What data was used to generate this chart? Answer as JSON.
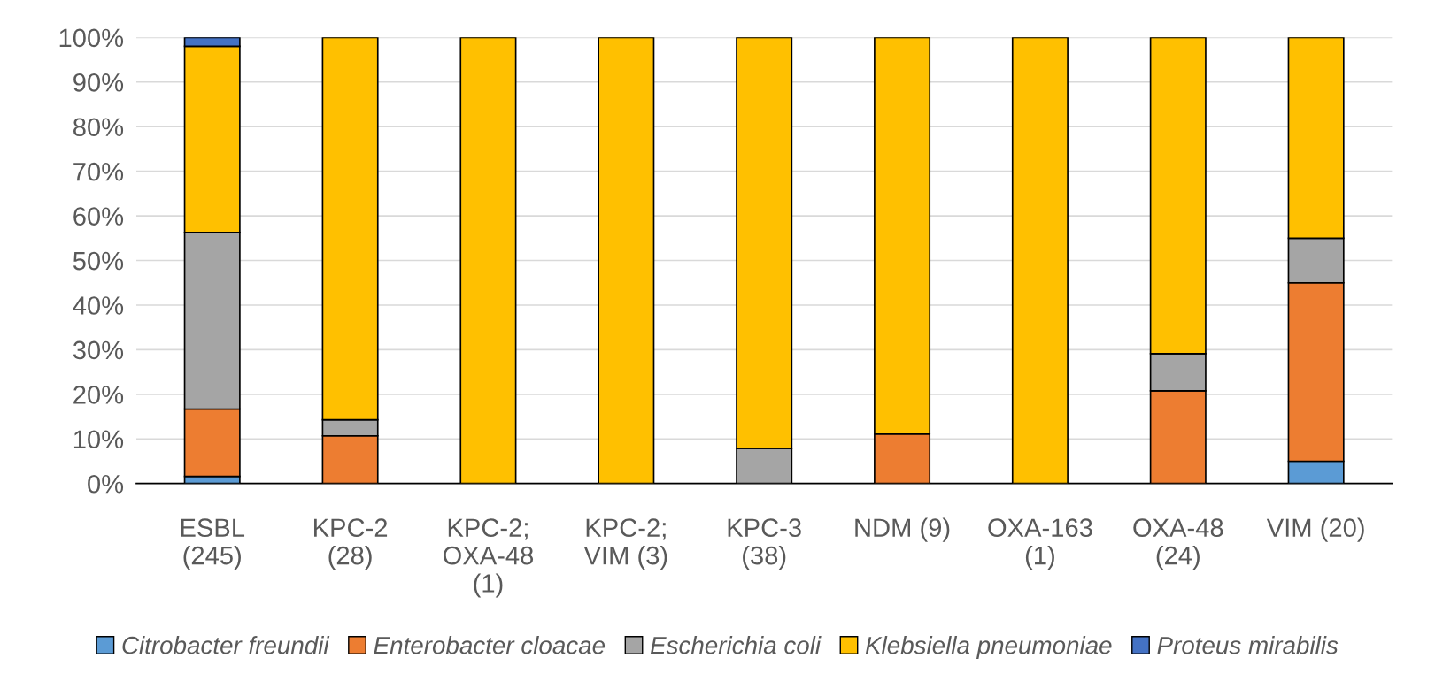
{
  "chart_data": {
    "type": "bar",
    "stacked": true,
    "categories": [
      "ESBL\n(245)",
      "KPC-2\n(28)",
      "KPC-2;\nOXA-48\n(1)",
      "KPC-2;\nVIM (3)",
      "KPC-3\n(38)",
      "NDM (9)",
      "OXA-163\n(1)",
      "OXA-48\n(24)",
      "VIM (20)"
    ],
    "series": [
      {
        "name": "Citrobacter freundii",
        "color": "#5b9bd5",
        "values": [
          1.6,
          0,
          0,
          0,
          0,
          0,
          0,
          0,
          5
        ]
      },
      {
        "name": "Enterobacter cloacae",
        "color": "#ed7d31",
        "values": [
          15.1,
          10.7,
          0,
          0,
          0,
          11.1,
          0,
          20.8,
          40
        ]
      },
      {
        "name": "Escherichia coli",
        "color": "#a5a5a5",
        "values": [
          39.6,
          3.6,
          0,
          0,
          7.9,
          0,
          0,
          8.3,
          10
        ]
      },
      {
        "name": "Klebsiella pneumoniae",
        "color": "#ffc000",
        "values": [
          41.7,
          85.7,
          100,
          100,
          92.1,
          88.9,
          100,
          70.9,
          45
        ]
      },
      {
        "name": "Proteus mirabilis",
        "color": "#4472c4",
        "values": [
          2.0,
          0,
          0,
          0,
          0,
          0,
          0,
          0,
          0
        ]
      }
    ],
    "ylim": [
      0,
      100
    ],
    "yticks": [
      {
        "value": 0,
        "label": "0%"
      },
      {
        "value": 10,
        "label": "10%"
      },
      {
        "value": 20,
        "label": "20%"
      },
      {
        "value": 30,
        "label": "30%"
      },
      {
        "value": 40,
        "label": "40%"
      },
      {
        "value": 50,
        "label": "50%"
      },
      {
        "value": 60,
        "label": "60%"
      },
      {
        "value": 70,
        "label": "70%"
      },
      {
        "value": 80,
        "label": "80%"
      },
      {
        "value": 90,
        "label": "90%"
      },
      {
        "value": 100,
        "label": "100%"
      }
    ],
    "grid": "y",
    "legend": "bottom"
  }
}
